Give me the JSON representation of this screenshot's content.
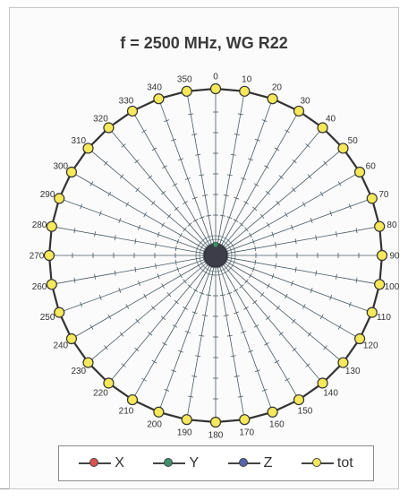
{
  "chart_data": {
    "type": "polar-line",
    "title": "f = 2500 MHz, WG R22",
    "angles": [
      0,
      10,
      20,
      30,
      40,
      50,
      60,
      70,
      80,
      90,
      100,
      110,
      120,
      130,
      140,
      150,
      160,
      170,
      180,
      190,
      200,
      210,
      220,
      230,
      240,
      250,
      260,
      270,
      280,
      290,
      300,
      310,
      320,
      330,
      340,
      350
    ],
    "angle_labels": [
      "0",
      "10",
      "20",
      "30",
      "40",
      "50",
      "60",
      "70",
      "80",
      "90",
      "100",
      "110",
      "120",
      "130",
      "140",
      "150",
      "160",
      "170",
      "180",
      "190",
      "200",
      "210",
      "220",
      "230",
      "240",
      "250",
      "260",
      "270",
      "280",
      "290",
      "300",
      "310",
      "320",
      "330",
      "340",
      "350"
    ],
    "rlim": [
      0,
      1
    ],
    "series": [
      {
        "name": "X",
        "color": "#d9534f",
        "values": [
          0.01,
          0.01,
          0.01,
          0.01,
          0.01,
          0.01,
          0.01,
          0.01,
          0.01,
          0.01,
          0.01,
          0.01,
          0.01,
          0.01,
          0.01,
          0.01,
          0.01,
          0.01,
          0.01,
          0.01,
          0.01,
          0.01,
          0.01,
          0.01,
          0.01,
          0.01,
          0.01,
          0.01,
          0.01,
          0.01,
          0.01,
          0.01,
          0.01,
          0.01,
          0.01,
          0.01
        ]
      },
      {
        "name": "Y",
        "color": "#3f8f6a",
        "values": [
          0.01,
          0.01,
          0.01,
          0.01,
          0.01,
          0.01,
          0.01,
          0.01,
          0.01,
          0.01,
          0.01,
          0.01,
          0.01,
          0.01,
          0.01,
          0.01,
          0.01,
          0.01,
          0.01,
          0.01,
          0.01,
          0.01,
          0.01,
          0.01,
          0.01,
          0.01,
          0.01,
          0.01,
          0.01,
          0.01,
          0.01,
          0.01,
          0.01,
          0.01,
          0.01,
          0.01
        ]
      },
      {
        "name": "Z",
        "color": "#5566aa",
        "values": [
          0.01,
          0.01,
          0.01,
          0.01,
          0.01,
          0.01,
          0.01,
          0.01,
          0.01,
          0.01,
          0.01,
          0.01,
          0.01,
          0.01,
          0.01,
          0.01,
          0.01,
          0.01,
          0.01,
          0.01,
          0.01,
          0.01,
          0.01,
          0.01,
          0.01,
          0.01,
          0.01,
          0.01,
          0.01,
          0.01,
          0.01,
          0.01,
          0.01,
          0.01,
          0.01,
          0.01
        ]
      },
      {
        "name": "tot",
        "color": "#f5e85a",
        "values": [
          1,
          1,
          1,
          1,
          1,
          1,
          1,
          1,
          1,
          1,
          1,
          1,
          1,
          1,
          1,
          1,
          1,
          1,
          1,
          1,
          1,
          1,
          1,
          1,
          1,
          1,
          1,
          1,
          1,
          1,
          1,
          1,
          1,
          1,
          1,
          1
        ]
      }
    ],
    "legend": {
      "placement": "bottom",
      "items": [
        {
          "label": "X",
          "color": "#d9534f"
        },
        {
          "label": "Y",
          "color": "#3f8f6a"
        },
        {
          "label": "Z",
          "color": "#5566aa"
        },
        {
          "label": "tot",
          "color": "#f5e85a"
        }
      ]
    }
  }
}
